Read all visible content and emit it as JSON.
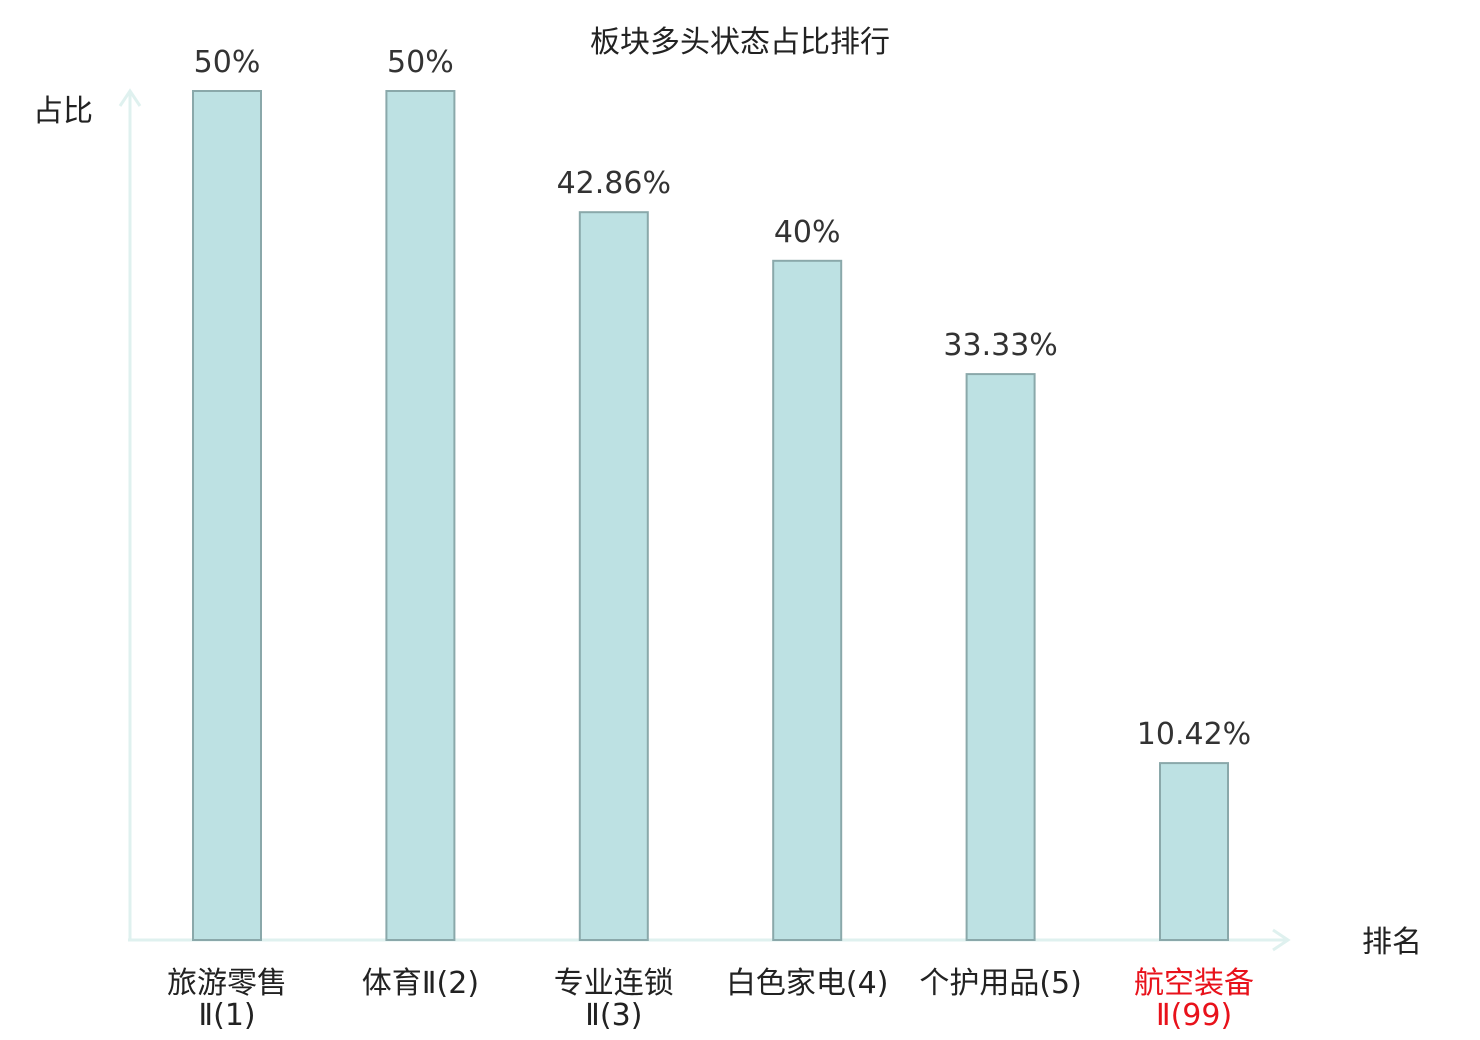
{
  "chart_data": {
    "type": "bar",
    "title": "板块多头状态占比排行",
    "xlabel": "排名",
    "ylabel": "占比",
    "ylim": [
      0,
      50
    ],
    "grid": false,
    "categories": [
      {
        "line1": "旅游零售",
        "line2": "Ⅱ(1)",
        "highlight": false
      },
      {
        "line1": "体育Ⅱ(2)",
        "line2": "",
        "highlight": false
      },
      {
        "line1": "专业连锁",
        "line2": "Ⅱ(3)",
        "highlight": false
      },
      {
        "line1": "白色家电(4)",
        "line2": "",
        "highlight": false
      },
      {
        "line1": "个护用品(5)",
        "line2": "",
        "highlight": false
      },
      {
        "line1": "航空装备",
        "line2": "Ⅱ(99)",
        "highlight": true
      }
    ],
    "values": [
      50,
      50,
      42.86,
      40,
      33.33,
      10.42
    ],
    "value_labels": [
      "50%",
      "50%",
      "42.86%",
      "40%",
      "33.33%",
      "10.42%"
    ]
  },
  "colors": {
    "bar_fill": "#bde1e3",
    "bar_stroke": "#8aa8aa",
    "axis": "#dff1ef",
    "text": "#222222",
    "highlight": "#e8121b"
  }
}
